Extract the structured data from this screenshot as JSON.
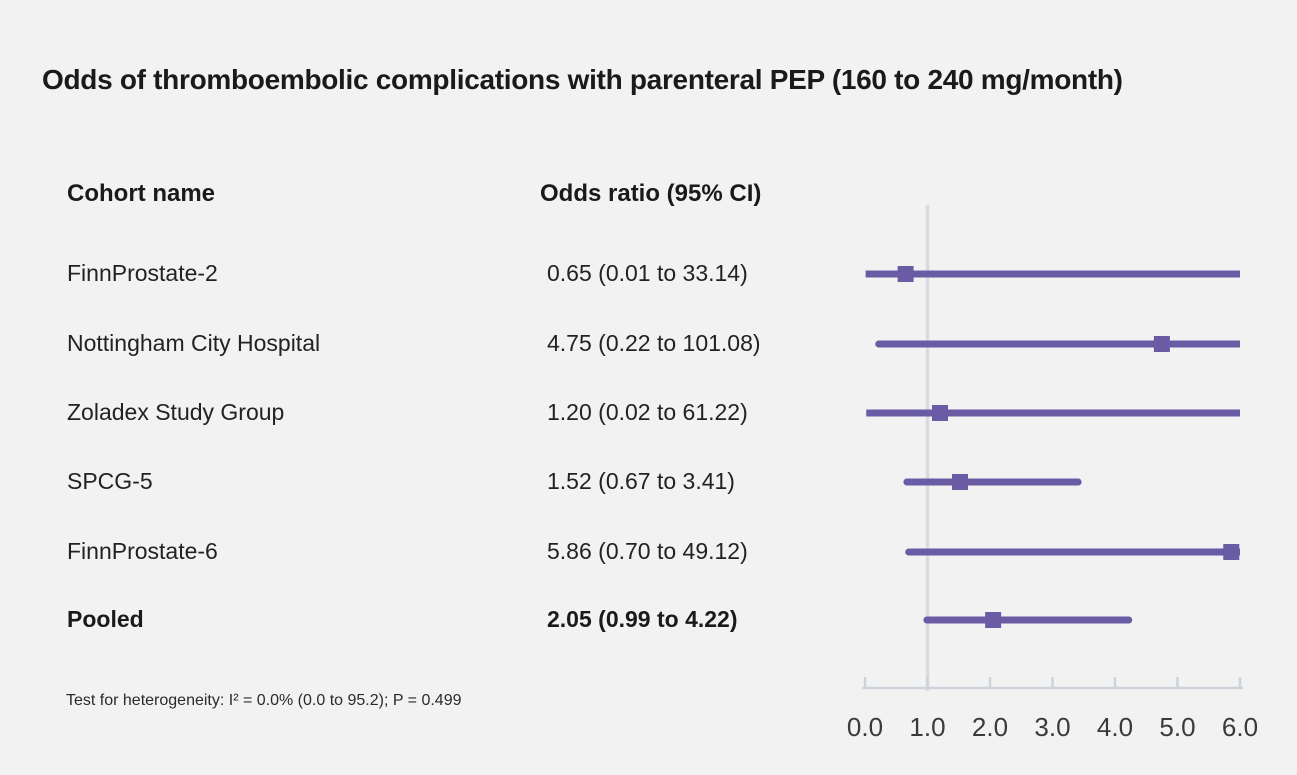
{
  "title": "Odds of thromboembolic complications with parenteral PEP (160 to 240 mg/month)",
  "columns": {
    "cohort": "Cohort name",
    "odds_ratio": "Odds ratio (95% CI)"
  },
  "footnote": "Test for heterogeneity: I² = 0.0% (0.0 to 95.2); P = 0.499",
  "colors": {
    "background": "#f2f2f2",
    "text": "#1e1e1c",
    "purple": "#6a5ba5",
    "reference_line": "#d8dbe2",
    "axis": "#cdd3db"
  },
  "chart_data": {
    "type": "forest",
    "title": "Odds of thromboembolic complications with parenteral PEP (160 to 240 mg/month)",
    "xlim": [
      0,
      6
    ],
    "reference_line": 1.0,
    "tick_values": [
      0,
      1,
      2,
      3,
      4,
      5,
      6
    ],
    "tick_labels": [
      "0.0",
      "1.0",
      "2.0",
      "3.0",
      "4.0",
      "5.0",
      "6.0"
    ],
    "grid": false,
    "rows": [
      {
        "name": "FinnProstate-2",
        "or": 0.65,
        "ci_low": 0.01,
        "ci_high": 33.14,
        "label": "0.65 (0.01 to 33.14)",
        "bold": false
      },
      {
        "name": "Nottingham City Hospital",
        "or": 4.75,
        "ci_low": 0.22,
        "ci_high": 101.08,
        "label": "4.75 (0.22 to 101.08)",
        "bold": false
      },
      {
        "name": "Zoladex Study Group",
        "or": 1.2,
        "ci_low": 0.02,
        "ci_high": 61.22,
        "label": "1.20 (0.02 to 61.22)",
        "bold": false
      },
      {
        "name": "SPCG-5",
        "or": 1.52,
        "ci_low": 0.67,
        "ci_high": 3.41,
        "label": "1.52 (0.67 to 3.41)",
        "bold": false
      },
      {
        "name": "FinnProstate-6",
        "or": 5.86,
        "ci_low": 0.7,
        "ci_high": 49.12,
        "label": "5.86 (0.70 to 49.12)",
        "bold": false
      },
      {
        "name": "Pooled",
        "or": 2.05,
        "ci_low": 0.99,
        "ci_high": 4.22,
        "label": "2.05 (0.99 to 4.22)",
        "bold": true
      }
    ]
  }
}
